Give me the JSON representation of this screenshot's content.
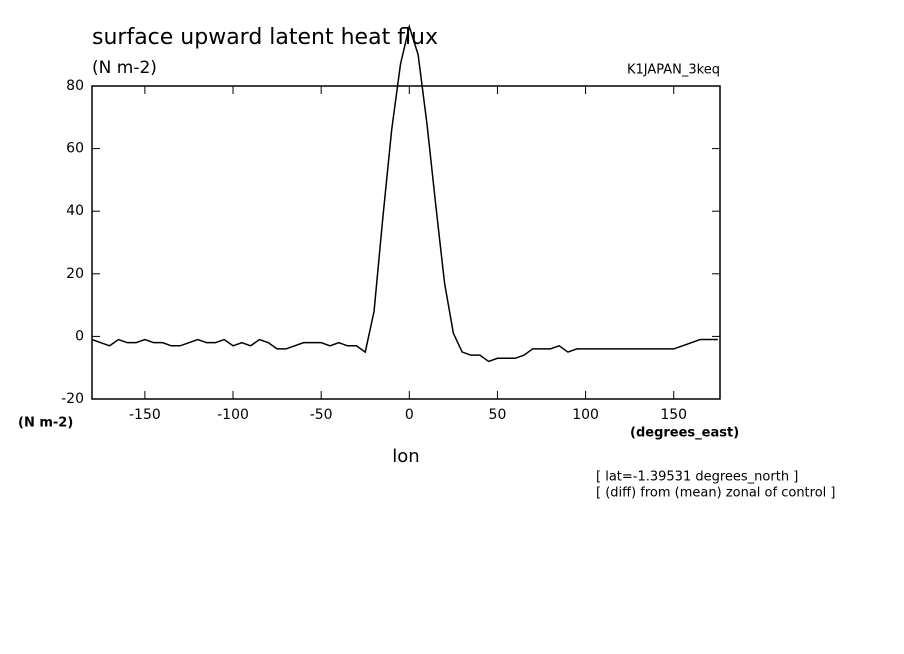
{
  "chart_data": {
    "type": "line",
    "title": "surface upward latent heat flux",
    "subtitle": "(N m-2)",
    "experiment": "K1JAPAN_3keq",
    "y_label": "(N m-2)",
    "x_unit": "(degrees_east)",
    "x_label": "lon",
    "annotations": [
      "[ lat=-1.39531 degrees_north ]",
      "[ (diff) from (mean) zonal of control ]"
    ],
    "xlim": [
      -180,
      176.25
    ],
    "ylim": [
      -20,
      80
    ],
    "xticks": [
      -150,
      -100,
      -50,
      0,
      50,
      100,
      150
    ],
    "yticks": [
      -20,
      0,
      20,
      40,
      60,
      80
    ],
    "color": "#000000",
    "x": [
      -180,
      -175,
      -170,
      -165,
      -160,
      -155,
      -150,
      -145,
      -140,
      -135,
      -130,
      -125,
      -120,
      -115,
      -110,
      -105,
      -100,
      -95,
      -90,
      -85,
      -80,
      -75,
      -70,
      -65,
      -60,
      -55,
      -50,
      -45,
      -40,
      -35,
      -30,
      -25,
      -20,
      -15,
      -10,
      -5,
      0,
      5,
      10,
      15,
      20,
      25,
      30,
      35,
      40,
      45,
      50,
      55,
      60,
      65,
      70,
      75,
      80,
      85,
      90,
      95,
      100,
      105,
      110,
      115,
      120,
      125,
      130,
      135,
      140,
      145,
      150,
      155,
      160,
      165,
      170,
      175
    ],
    "values": [
      -1,
      -2,
      -3,
      -1,
      -2,
      -2,
      -1,
      -2,
      -2,
      -3,
      -3,
      -2,
      -1,
      -2,
      -2,
      -1,
      -3,
      -2,
      -3,
      -1,
      -2,
      -4,
      -4,
      -3,
      -2,
      -2,
      -2,
      -3,
      -2,
      -3,
      -3,
      -5,
      8,
      38,
      66,
      87,
      99,
      90,
      68,
      42,
      17,
      1,
      -5,
      -6,
      -6,
      -8,
      -7,
      -7,
      -7,
      -6,
      -4,
      -4,
      -4,
      -3,
      -5,
      -4,
      -4,
      -4,
      -4,
      -4,
      -4,
      -4,
      -4,
      -4,
      -4,
      -4,
      -4,
      -3,
      -2,
      -1,
      -1,
      -1
    ]
  }
}
